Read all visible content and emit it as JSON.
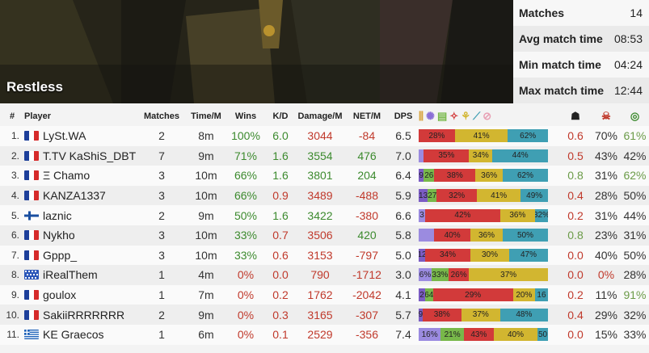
{
  "banner": {
    "title": "Restless"
  },
  "stats": [
    {
      "label": "Matches",
      "value": "14"
    },
    {
      "label": "Avg match time",
      "value": "08:53"
    },
    {
      "label": "Min match time",
      "value": "04:24"
    },
    {
      "label": "Max match time",
      "value": "12:44"
    }
  ],
  "headers": {
    "idx": "#",
    "player": "Player",
    "matches": "Matches",
    "time": "Time/M",
    "wins": "Wins",
    "kd": "K/D",
    "damage": "Damage/M",
    "net": "NET/M",
    "dps": "DPS"
  },
  "colors": {
    "win_green": "#3c8a2e",
    "negative_red": "#c0392b",
    "seg_purple": "#7b5cc4",
    "seg_green": "#78b84a",
    "seg_red": "#d23a3a",
    "seg_yellow": "#d2b630",
    "seg_teal": "#3f9fb3",
    "seg_pink": "#e8a0b4"
  },
  "header_icons": [
    "class-1-icon",
    "class-2-icon",
    "class-3-icon",
    "class-4-icon",
    "class-5-icon",
    "class-6-icon",
    "class-7-icon",
    "skull-icon",
    "devil-icon",
    "heal-icon"
  ],
  "rows": [
    {
      "idx": "1.",
      "flag": "fr",
      "name": "LySt.WA",
      "matches": "2",
      "time": "8m",
      "wins": "100%",
      "kd": "6.0",
      "damage": "3044",
      "net": "-84",
      "dps": "6.5",
      "bar": [
        {
          "c": "seg_red",
          "v": 28,
          "t": "28%"
        },
        {
          "c": "seg_yellow",
          "v": 41,
          "t": "41%"
        },
        {
          "c": "seg_teal",
          "v": 31,
          "t": "62%"
        }
      ],
      "c1": "0.6",
      "c2": "70%",
      "c3": "61%"
    },
    {
      "idx": "2.",
      "flag": "fr",
      "name": "T.TV KaShiS_DBT",
      "matches": "7",
      "time": "9m",
      "wins": "71%",
      "kd": "1.6",
      "damage": "3554",
      "net": "476",
      "dps": "7.0",
      "bar": [
        {
          "c": "seg_lav",
          "v": 4,
          "t": ""
        },
        {
          "c": "seg_red",
          "v": 35,
          "t": "35%"
        },
        {
          "c": "seg_yellow",
          "v": 18,
          "t": "34%"
        },
        {
          "c": "seg_teal",
          "v": 43,
          "t": "44%"
        }
      ],
      "c1": "0.5",
      "c2": "43%",
      "c3": "42%"
    },
    {
      "idx": "3.",
      "flag": "fr",
      "name": "Ξ Chamo",
      "matches": "3",
      "time": "10m",
      "wins": "66%",
      "kd": "1.6",
      "damage": "3801",
      "net": "204",
      "dps": "6.4",
      "bar": [
        {
          "c": "seg_purple",
          "v": 4,
          "t": "9"
        },
        {
          "c": "seg_green",
          "v": 8,
          "t": "26"
        },
        {
          "c": "seg_red",
          "v": 32,
          "t": "38%"
        },
        {
          "c": "seg_yellow",
          "v": 21,
          "t": "36%"
        },
        {
          "c": "seg_teal",
          "v": 35,
          "t": "62%"
        }
      ],
      "c1": "0.8",
      "c2": "31%",
      "c3": "62%"
    },
    {
      "idx": "4.",
      "flag": "fr",
      "name": "KANZA1337",
      "matches": "3",
      "time": "10m",
      "wins": "66%",
      "kd": "0.9",
      "damage": "3489",
      "net": "-488",
      "dps": "5.9",
      "bar": [
        {
          "c": "seg_purple",
          "v": 7,
          "t": "13"
        },
        {
          "c": "seg_green",
          "v": 7,
          "t": "27"
        },
        {
          "c": "seg_red",
          "v": 31,
          "t": "32%"
        },
        {
          "c": "seg_yellow",
          "v": 34,
          "t": "41%"
        },
        {
          "c": "seg_teal",
          "v": 21,
          "t": "49%"
        }
      ],
      "c1": "0.4",
      "c2": "28%",
      "c3": "50%"
    },
    {
      "idx": "5.",
      "flag": "fi",
      "name": "laznic",
      "matches": "2",
      "time": "9m",
      "wins": "50%",
      "kd": "1.6",
      "damage": "3422",
      "net": "-380",
      "dps": "6.6",
      "bar": [
        {
          "c": "seg_lav",
          "v": 5,
          "t": "3"
        },
        {
          "c": "seg_red",
          "v": 58,
          "t": "42%"
        },
        {
          "c": "seg_yellow",
          "v": 27,
          "t": "36%"
        },
        {
          "c": "seg_teal",
          "v": 10,
          "t": "32%"
        }
      ],
      "c1": "0.2",
      "c2": "31%",
      "c3": "44%"
    },
    {
      "idx": "6.",
      "flag": "fr",
      "name": "Nykho",
      "matches": "3",
      "time": "10m",
      "wins": "33%",
      "kd": "0.7",
      "damage": "3506",
      "net": "420",
      "dps": "5.8",
      "bar": [
        {
          "c": "seg_lav",
          "v": 12,
          "t": ""
        },
        {
          "c": "seg_red",
          "v": 28,
          "t": "40%"
        },
        {
          "c": "seg_yellow",
          "v": 25,
          "t": "36%"
        },
        {
          "c": "seg_teal",
          "v": 35,
          "t": "50%"
        }
      ],
      "c1": "0.8",
      "c2": "23%",
      "c3": "31%"
    },
    {
      "idx": "7.",
      "flag": "fr",
      "name": "Gppp_",
      "matches": "3",
      "time": "10m",
      "wins": "33%",
      "kd": "0.6",
      "damage": "3153",
      "net": "-797",
      "dps": "5.0",
      "bar": [
        {
          "c": "seg_purple",
          "v": 5,
          "t": "12"
        },
        {
          "c": "seg_red",
          "v": 35,
          "t": "34%"
        },
        {
          "c": "seg_yellow",
          "v": 30,
          "t": "30%"
        },
        {
          "c": "seg_teal",
          "v": 30,
          "t": "47%"
        }
      ],
      "c1": "0.0",
      "c2": "40%",
      "c3": "50%"
    },
    {
      "idx": "8.",
      "flag": "gr_alt",
      "name": "iRealThem",
      "matches": "1",
      "time": "4m",
      "wins": "0%",
      "kd": "0.0",
      "damage": "790",
      "net": "-1712",
      "dps": "3.0",
      "bar": [
        {
          "c": "seg_lav",
          "v": 10,
          "t": "6%"
        },
        {
          "c": "seg_green",
          "v": 13,
          "t": "33%"
        },
        {
          "c": "seg_red",
          "v": 16,
          "t": "26%"
        },
        {
          "c": "seg_yellow",
          "v": 61,
          "t": "37%"
        }
      ],
      "c1": "0.0",
      "c2": "0%",
      "c3": "28%"
    },
    {
      "idx": "9.",
      "flag": "fr",
      "name": "goulox",
      "matches": "1",
      "time": "7m",
      "wins": "0%",
      "kd": "0.2",
      "damage": "1762",
      "net": "-2042",
      "dps": "4.1",
      "bar": [
        {
          "c": "seg_purple",
          "v": 5,
          "t": "2"
        },
        {
          "c": "seg_green",
          "v": 6,
          "t": "64"
        },
        {
          "c": "seg_red",
          "v": 62,
          "t": "29%"
        },
        {
          "c": "seg_yellow",
          "v": 17,
          "t": "20%"
        },
        {
          "c": "seg_teal",
          "v": 10,
          "t": "16"
        }
      ],
      "c1": "0.2",
      "c2": "11%",
      "c3": "91%"
    },
    {
      "idx": "10.",
      "flag": "fr",
      "name": "SakiiRRRRRRR",
      "matches": "2",
      "time": "9m",
      "wins": "0%",
      "kd": "0.3",
      "damage": "3165",
      "net": "-307",
      "dps": "5.7",
      "bar": [
        {
          "c": "seg_purple",
          "v": 3,
          "t": "9"
        },
        {
          "c": "seg_red",
          "v": 30,
          "t": "38%"
        },
        {
          "c": "seg_yellow",
          "v": 30,
          "t": "37%"
        },
        {
          "c": "seg_teal",
          "v": 37,
          "t": "48%"
        }
      ],
      "c1": "0.4",
      "c2": "29%",
      "c3": "32%"
    },
    {
      "idx": "11.",
      "flag": "gr",
      "name": "KE Graecos",
      "matches": "1",
      "time": "6m",
      "wins": "0%",
      "kd": "0.1",
      "damage": "2529",
      "net": "-356",
      "dps": "7.4",
      "bar": [
        {
          "c": "seg_lav",
          "v": 17,
          "t": "16%"
        },
        {
          "c": "seg_green",
          "v": 18,
          "t": "21%"
        },
        {
          "c": "seg_red",
          "v": 23,
          "t": "43%"
        },
        {
          "c": "seg_yellow",
          "v": 34,
          "t": "40%"
        },
        {
          "c": "seg_teal",
          "v": 8,
          "t": "50"
        }
      ],
      "c1": "0.0",
      "c2": "15%",
      "c3": "33%"
    }
  ]
}
